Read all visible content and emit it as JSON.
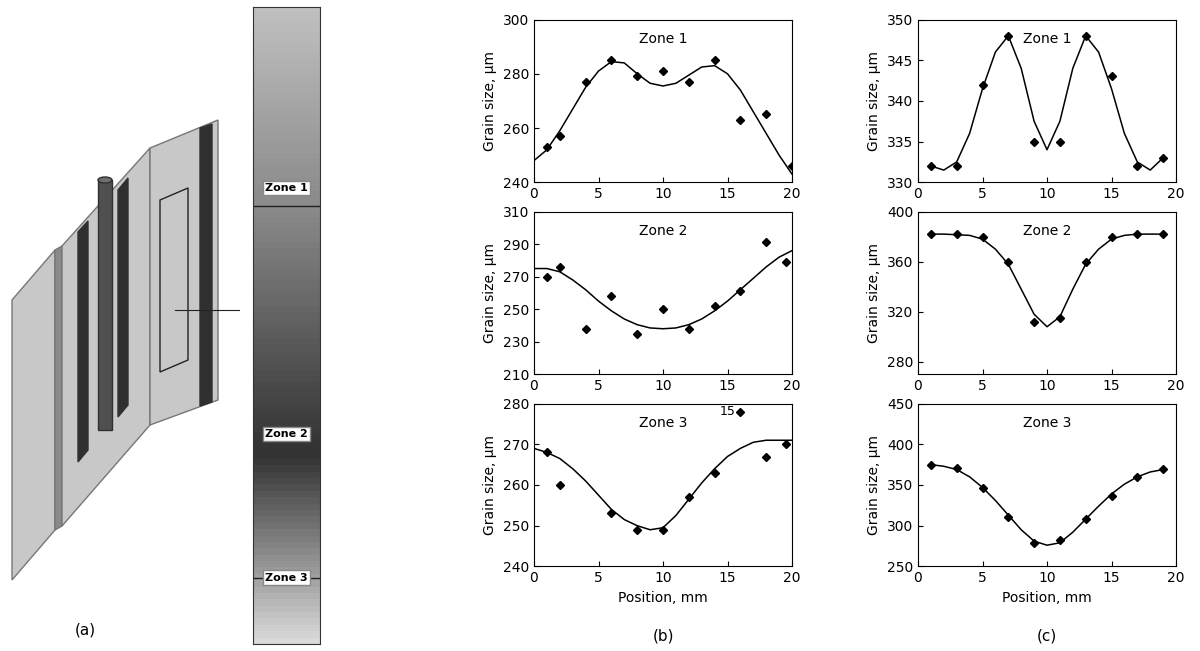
{
  "figure": {
    "panel_labels": [
      "(a)",
      "(b)",
      "(c)"
    ],
    "strip_zones": [
      "Zone 1",
      "Zone 2",
      "Zone 3"
    ]
  },
  "chart_data": [
    {
      "type": "line",
      "title": "Zone 1",
      "y_label": "Grain size, µm",
      "xlim": [
        0,
        20
      ],
      "xticks": [
        0,
        5,
        10,
        15,
        20
      ],
      "ylim": [
        240,
        300
      ],
      "yticks": [
        240,
        260,
        280,
        300
      ],
      "series": [
        {
          "type": "scatter",
          "marker": "diamond",
          "color": "#000000",
          "x": [
            1,
            2,
            4,
            6,
            8,
            10,
            12,
            14,
            16,
            18,
            20
          ],
          "values": [
            253,
            257,
            277,
            285,
            279,
            281,
            277,
            285,
            263,
            265,
            246
          ]
        },
        {
          "type": "line",
          "line_style": "solid",
          "color": "#000000",
          "x": [
            0,
            1,
            2,
            3,
            4,
            5,
            6,
            7,
            8,
            9,
            10,
            11,
            12,
            13,
            14,
            15,
            16,
            17,
            18,
            19,
            20
          ],
          "values": [
            248,
            252,
            259,
            267,
            275,
            281,
            284.5,
            284,
            280,
            276.5,
            275.5,
            276.5,
            279.5,
            282.5,
            283,
            280,
            274,
            266,
            258,
            250,
            243
          ]
        }
      ]
    },
    {
      "type": "line",
      "title": "Zone 2",
      "y_label": "Grain size, µm",
      "xlim": [
        0,
        20
      ],
      "xticks": [
        0,
        5,
        10,
        15,
        20
      ],
      "ylim": [
        210,
        310
      ],
      "yticks": [
        210,
        230,
        250,
        270,
        290,
        310
      ],
      "series": [
        {
          "type": "scatter",
          "marker": "diamond",
          "color": "#000000",
          "x": [
            1,
            2,
            4,
            6,
            8,
            10,
            12,
            14,
            16,
            18,
            19.5
          ],
          "values": [
            270,
            276,
            238,
            258,
            235,
            250,
            238,
            252,
            261,
            291,
            279
          ]
        },
        {
          "type": "line",
          "line_style": "solid",
          "color": "#000000",
          "x": [
            0,
            1,
            2,
            3,
            4,
            5,
            6,
            7,
            8,
            9,
            10,
            11,
            12,
            13,
            14,
            15,
            16,
            17,
            18,
            19,
            20
          ],
          "values": [
            275,
            275,
            273,
            268,
            262,
            255,
            249,
            244,
            240.5,
            238.5,
            238,
            238.5,
            240.5,
            244,
            249,
            255,
            262,
            269,
            276,
            282,
            286
          ]
        }
      ]
    },
    {
      "type": "line",
      "title": "Zone 3",
      "x_label": "Position, mm",
      "y_label": "Grain size, µm",
      "xlim": [
        0,
        20
      ],
      "xticks": [
        0,
        5,
        10,
        15,
        20
      ],
      "ylim": [
        240,
        280
      ],
      "yticks": [
        240,
        250,
        260,
        270,
        280
      ],
      "annotations": [
        {
          "text": "15",
          "x": 15,
          "y": 278
        }
      ],
      "series": [
        {
          "type": "scatter",
          "marker": "diamond",
          "color": "#000000",
          "x": [
            1,
            2,
            6,
            8,
            10,
            12,
            14,
            16,
            18,
            19.5
          ],
          "values": [
            268,
            260,
            253,
            249,
            249,
            257,
            263,
            278,
            267,
            270
          ]
        },
        {
          "type": "line",
          "line_style": "solid",
          "color": "#000000",
          "x": [
            0,
            1,
            2,
            3,
            4,
            5,
            6,
            7,
            8,
            9,
            10,
            11,
            12,
            13,
            14,
            15,
            16,
            17,
            18,
            19,
            20
          ],
          "values": [
            269,
            268,
            266.5,
            264,
            261,
            257.5,
            254,
            251.5,
            250,
            249,
            249.5,
            252.5,
            256.5,
            260.5,
            264,
            267,
            269,
            270.5,
            271,
            271,
            271
          ]
        }
      ]
    },
    {
      "type": "line",
      "title": "Zone 1",
      "y_label": "Grain size, µm",
      "xlim": [
        0,
        20
      ],
      "xticks": [
        0,
        5,
        10,
        15,
        20
      ],
      "ylim": [
        330,
        350
      ],
      "yticks": [
        330,
        335,
        340,
        345,
        350
      ],
      "series": [
        {
          "type": "scatter",
          "marker": "diamond",
          "color": "#000000",
          "x": [
            1,
            3,
            5,
            7,
            9,
            11,
            13,
            15,
            17,
            19
          ],
          "values": [
            332,
            332,
            342,
            348,
            335,
            335,
            348,
            343,
            332,
            333
          ]
        },
        {
          "type": "line",
          "line_style": "solid",
          "color": "#000000",
          "x": [
            1,
            2,
            3,
            4,
            5,
            6,
            7,
            8,
            9,
            10,
            11,
            12,
            13,
            14,
            15,
            16,
            17,
            18,
            19
          ],
          "values": [
            332,
            331.5,
            332.5,
            336,
            341.5,
            346,
            348,
            344,
            337.5,
            334,
            337.5,
            344,
            348,
            346,
            341.5,
            336,
            332.5,
            331.5,
            333
          ]
        }
      ]
    },
    {
      "type": "line",
      "title": "Zone 2",
      "y_label": "Grain size, µm",
      "xlim": [
        0,
        20
      ],
      "xticks": [
        0,
        5,
        10,
        15,
        20
      ],
      "ylim": [
        270,
        400
      ],
      "yticks": [
        280,
        320,
        360,
        400
      ],
      "series": [
        {
          "type": "scatter",
          "marker": "diamond",
          "color": "#000000",
          "x": [
            1,
            3,
            5,
            7,
            9,
            11,
            13,
            15,
            17,
            19
          ],
          "values": [
            382,
            382,
            380,
            360,
            312,
            315,
            360,
            380,
            382,
            382
          ]
        },
        {
          "type": "line",
          "line_style": "solid",
          "color": "#000000",
          "x": [
            1,
            2,
            3,
            4,
            5,
            6,
            7,
            8,
            9,
            10,
            11,
            12,
            13,
            14,
            15,
            16,
            17,
            18,
            19
          ],
          "values": [
            382,
            382,
            381.5,
            381,
            378,
            370,
            358,
            338,
            318,
            308,
            316,
            338,
            358,
            370,
            378,
            381,
            382,
            382,
            382
          ]
        }
      ]
    },
    {
      "type": "line",
      "title": "Zone 3",
      "x_label": "Position, mm",
      "y_label": "Grain size, µm",
      "xlim": [
        0,
        20
      ],
      "xticks": [
        0,
        5,
        10,
        15,
        20
      ],
      "ylim": [
        250,
        450
      ],
      "yticks": [
        250,
        300,
        350,
        400,
        450
      ],
      "series": [
        {
          "type": "scatter",
          "marker": "diamond",
          "color": "#000000",
          "x": [
            1,
            3,
            5,
            7,
            9,
            11,
            13,
            15,
            17,
            19
          ],
          "values": [
            375,
            371,
            346,
            311,
            279,
            282,
            308,
            336,
            360,
            370
          ]
        },
        {
          "type": "line",
          "line_style": "solid",
          "color": "#000000",
          "x": [
            1,
            2,
            3,
            4,
            5,
            6,
            7,
            8,
            9,
            10,
            11,
            12,
            13,
            14,
            15,
            16,
            17,
            18,
            19
          ],
          "values": [
            375,
            373,
            369,
            360,
            347,
            331,
            313,
            295,
            281,
            276,
            279,
            292,
            308,
            324,
            339,
            351,
            360,
            366,
            369
          ]
        }
      ]
    }
  ]
}
